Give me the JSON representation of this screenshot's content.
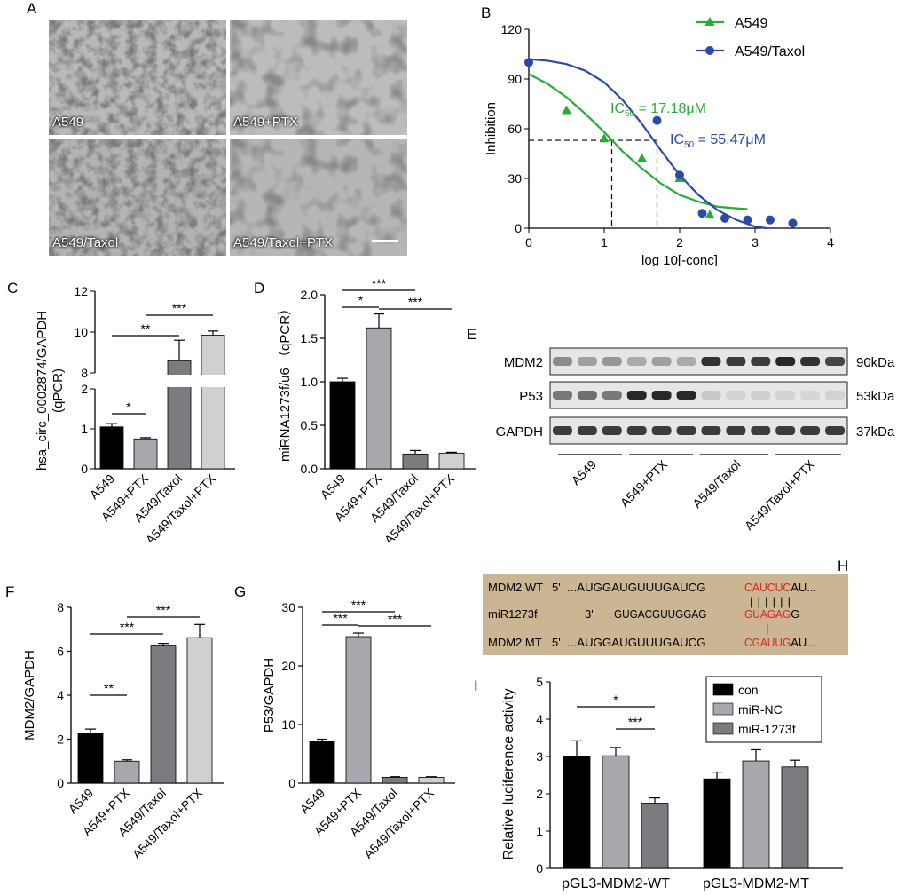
{
  "panels": {
    "A": "A",
    "B": "B",
    "C": "C",
    "D": "D",
    "E": "E",
    "F": "F",
    "G": "G",
    "H": "H",
    "I": "I"
  },
  "colors": {
    "green": "#2aaa3a",
    "blue": "#2b4aa8",
    "black": "#000000",
    "gray1": "#a6a8ad",
    "gray2": "#7b7c80",
    "gray3": "#d0d0d2",
    "red": "#d8262b",
    "tan": "#cbb592"
  },
  "micrographs": [
    "A549",
    "A549+PTX",
    "A549/Taxol",
    "A549/Taxol+PTX"
  ],
  "chart_data": [
    {
      "id": "B",
      "type": "scatter",
      "xlabel": "log 10[-conc]",
      "ylabel": "Inhibition",
      "xlim": [
        0,
        4
      ],
      "ylim": [
        0,
        120
      ],
      "xticks": [
        "0",
        "1",
        "2",
        "3",
        "4"
      ],
      "yticks": [
        "0",
        "30",
        "60",
        "90",
        "120"
      ],
      "legend": {
        "position": "top-right"
      },
      "series": [
        {
          "name": "A549",
          "marker": "triangle",
          "color": "#2aaa3a",
          "x": [
            0.5,
            1.0,
            1.5,
            2.0,
            2.4
          ],
          "y": [
            71,
            54,
            42,
            30,
            8
          ],
          "curve": {
            "x": [
              0,
              0.25,
              0.5,
              0.75,
              1,
              1.25,
              1.5,
              1.75,
              2,
              2.25,
              2.5,
              2.75,
              2.9
            ],
            "y": [
              93,
              87,
              79,
              69,
              58,
              46,
              36,
              27,
              20,
              16,
              13,
              12,
              11.5
            ]
          }
        },
        {
          "name": "A549/Taxol",
          "marker": "circle",
          "color": "#2b4aa8",
          "x": [
            0,
            1.7,
            2.0,
            2.3,
            2.6,
            2.9,
            3.2,
            3.5
          ],
          "y": [
            100,
            65,
            32,
            9,
            6,
            5,
            5,
            3
          ],
          "curve": {
            "x": [
              0,
              0.25,
              0.5,
              0.75,
              1,
              1.25,
              1.5,
              1.75,
              2,
              2.25,
              2.5,
              2.75,
              3,
              3.15
            ],
            "y": [
              102,
              101,
              99,
              95,
              88,
              77,
              63,
              47,
              32,
              20,
              11,
              5,
              1,
              0
            ]
          }
        }
      ],
      "annotations": [
        {
          "text_pre": "IC",
          "text_sub": "50",
          "text_post": " = 17.18μM",
          "color": "#2aaa3a",
          "x": 1.1,
          "y": 53
        },
        {
          "text_pre": "IC",
          "text_sub": "50",
          "text_post": " = 55.47μM",
          "color": "#2b4aa8",
          "x": 1.7,
          "y": 53
        }
      ]
    },
    {
      "id": "C",
      "type": "bar",
      "ylabel": "hsa_circ_0002874/GAPDH (qPCR)",
      "categories": [
        "A549",
        "A549+PTX",
        "A549/Taxol",
        "A549/Taxol+PTX"
      ],
      "values": [
        1.05,
        0.75,
        8.6,
        9.85
      ],
      "errors": [
        0.08,
        0.03,
        1.0,
        0.2
      ],
      "broken_axis": {
        "lower": [
          0,
          2
        ],
        "upper": [
          8,
          12
        ],
        "lower_ticks": [
          "0",
          "1",
          "2"
        ],
        "upper_ticks": [
          "8",
          "10",
          "12"
        ]
      },
      "significance": [
        {
          "from": 0,
          "to": 1,
          "label": "*"
        },
        {
          "from": 0,
          "to": 2,
          "label": "**"
        },
        {
          "from": 1,
          "to": 3,
          "label": "***"
        }
      ]
    },
    {
      "id": "D",
      "type": "bar",
      "ylabel": "miRNA1273f/u6 （qPCR）",
      "categories": [
        "A549",
        "A549+PTX",
        "A549/Taxol",
        "A549/Taxol+PTX"
      ],
      "values": [
        1.0,
        1.62,
        0.17,
        0.18
      ],
      "errors": [
        0.04,
        0.16,
        0.04,
        0.01
      ],
      "ylim": [
        0,
        2.0
      ],
      "yticks": [
        "0.0",
        "0.5",
        "1.0",
        "1.5",
        "2.0"
      ],
      "significance": [
        {
          "from": 0,
          "to": 1,
          "label": "*"
        },
        {
          "from": 0,
          "to": 2,
          "label": "***"
        },
        {
          "from": 1,
          "to": 3,
          "label": "***"
        }
      ]
    },
    {
      "id": "F",
      "type": "bar",
      "ylabel": "MDM2/GAPDH",
      "categories": [
        "A549",
        "A549+PTX",
        "A549/Taxol",
        "A549/Taxol+PTX"
      ],
      "values": [
        2.28,
        1.0,
        6.28,
        6.62
      ],
      "errors": [
        0.18,
        0.06,
        0.08,
        0.6
      ],
      "ylim": [
        0,
        8
      ],
      "yticks": [
        "0",
        "2",
        "4",
        "6",
        "8"
      ],
      "significance": [
        {
          "from": 0,
          "to": 1,
          "label": "**"
        },
        {
          "from": 0,
          "to": 2,
          "label": "***"
        },
        {
          "from": 1,
          "to": 3,
          "label": "***"
        }
      ]
    },
    {
      "id": "G",
      "type": "bar",
      "ylabel": "P53/GAPDH",
      "categories": [
        "A549",
        "A549+PTX",
        "A549/Taxol",
        "A549/Taxol+PTX"
      ],
      "values": [
        7.2,
        25.0,
        1.0,
        1.0
      ],
      "errors": [
        0.3,
        0.6,
        0.1,
        0.1
      ],
      "ylim": [
        0,
        30
      ],
      "yticks": [
        "0",
        "10",
        "20",
        "30"
      ],
      "significance": [
        {
          "from": 0,
          "to": 1,
          "label": "***"
        },
        {
          "from": 0,
          "to": 2,
          "label": "***"
        },
        {
          "from": 1,
          "to": 3,
          "label": "***"
        }
      ]
    },
    {
      "id": "I",
      "type": "bar",
      "ylabel": "Relative  luciference activity",
      "groups": [
        "pGL3-MDM2-WT",
        "pGL3-MDM2-MT"
      ],
      "series": [
        {
          "name": "con",
          "color": "#000000",
          "values": [
            3.0,
            2.4
          ],
          "errors": [
            0.42,
            0.18
          ]
        },
        {
          "name": "miR-NC",
          "color": "#a6a8ad",
          "values": [
            3.02,
            2.88
          ],
          "errors": [
            0.22,
            0.3
          ]
        },
        {
          "name": "miR-1273f",
          "color": "#7b7c80",
          "values": [
            1.75,
            2.72
          ],
          "errors": [
            0.14,
            0.18
          ]
        }
      ],
      "ylim": [
        0,
        5
      ],
      "yticks": [
        "0",
        "1",
        "2",
        "3",
        "4",
        "5"
      ],
      "legend": {
        "position": "top-right"
      },
      "significance": [
        {
          "from": 0,
          "to": 2,
          "label": "*"
        },
        {
          "from": 1,
          "to": 2,
          "label": "***"
        }
      ]
    }
  ],
  "blot": {
    "rows": [
      {
        "label": "MDM2",
        "kda": "90kDa"
      },
      {
        "label": "P53",
        "kda": "53kDa"
      },
      {
        "label": "GAPDH",
        "kda": "37kDa"
      }
    ],
    "intensity": {
      "MDM2": [
        0.45,
        0.35,
        0.4,
        0.3,
        0.35,
        0.3,
        0.9,
        0.85,
        0.85,
        0.95,
        0.9,
        0.8
      ],
      "P53": [
        0.55,
        0.6,
        0.55,
        0.95,
        0.95,
        0.95,
        0.15,
        0.1,
        0.12,
        0.1,
        0.08,
        0.1
      ],
      "GAPDH": [
        0.85,
        0.85,
        0.85,
        0.85,
        0.85,
        0.85,
        0.85,
        0.85,
        0.85,
        0.85,
        0.85,
        0.85
      ]
    },
    "groups": [
      "A549",
      "A549+PTX",
      "A549/Taxol",
      "A549/Taxol+PTX"
    ]
  },
  "sequence": {
    "rows": [
      {
        "label": "MDM2 WT",
        "prime": "5'",
        "seq": "...AUGGAUGUUUGAUCG",
        "highlight": "CAUCUC",
        "tail": "AU..."
      },
      {
        "label": "miR1273f",
        "prime": "3'",
        "seq": "GUGACGUUGGAG",
        "highlight": "GUAGAG",
        "tail": "G"
      },
      {
        "label": "MDM2 MT",
        "prime": "5'",
        "seq": "...AUGGAUGUUUGAUCG",
        "highlight": "CGAUUG",
        "tail": "AU..."
      }
    ],
    "pair_marks_top": "||||||",
    "pair_marks_bottom": "|"
  }
}
